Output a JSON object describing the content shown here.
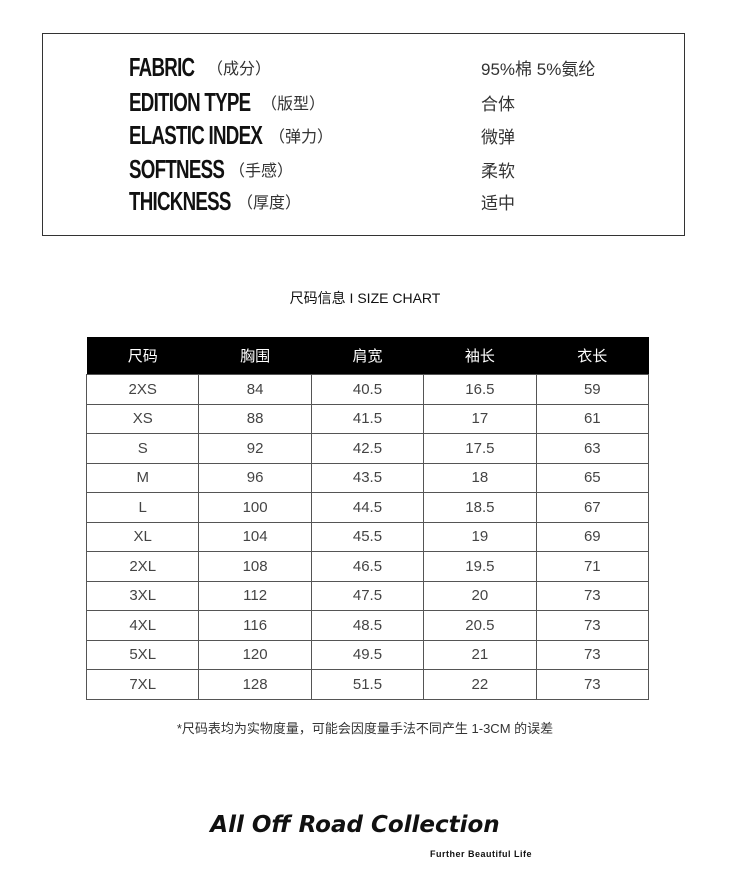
{
  "specs": [
    {
      "label": "FABRIC",
      "cn": "（成分）",
      "value": "95%棉 5%氨纶"
    },
    {
      "label": "EDITION TYPE",
      "cn": "（版型）",
      "value": "合体"
    },
    {
      "label": "ELASTIC INDEX",
      "cn": "（弹力）",
      "value": "微弹"
    },
    {
      "label": "SOFTNESS",
      "cn": "（手感）",
      "value": "柔软"
    },
    {
      "label": "THICKNESS",
      "cn": "（厚度）",
      "value": "适中"
    }
  ],
  "size_chart": {
    "title": "尺码信息 I SIZE CHART",
    "headers": [
      "尺码",
      "胸围",
      "肩宽",
      "袖长",
      "衣长"
    ],
    "rows": [
      [
        "2XS",
        "84",
        "40.5",
        "16.5",
        "59"
      ],
      [
        "XS",
        "88",
        "41.5",
        "17",
        "61"
      ],
      [
        "S",
        "92",
        "42.5",
        "17.5",
        "63"
      ],
      [
        "M",
        "96",
        "43.5",
        "18",
        "65"
      ],
      [
        "L",
        "100",
        "44.5",
        "18.5",
        "67"
      ],
      [
        "XL",
        "104",
        "45.5",
        "19",
        "69"
      ],
      [
        "2XL",
        "108",
        "46.5",
        "19.5",
        "71"
      ],
      [
        "3XL",
        "112",
        "47.5",
        "20",
        "73"
      ],
      [
        "4XL",
        "116",
        "48.5",
        "20.5",
        "73"
      ],
      [
        "5XL",
        "120",
        "49.5",
        "21",
        "73"
      ],
      [
        "7XL",
        "128",
        "51.5",
        "22",
        "73"
      ]
    ],
    "note": "*尺码表均为实物度量，可能会因度量手法不同产生 1-3CM 的误差"
  },
  "brand": {
    "name": "All Off Road Collection",
    "tagline": "Further Beautiful Life"
  }
}
